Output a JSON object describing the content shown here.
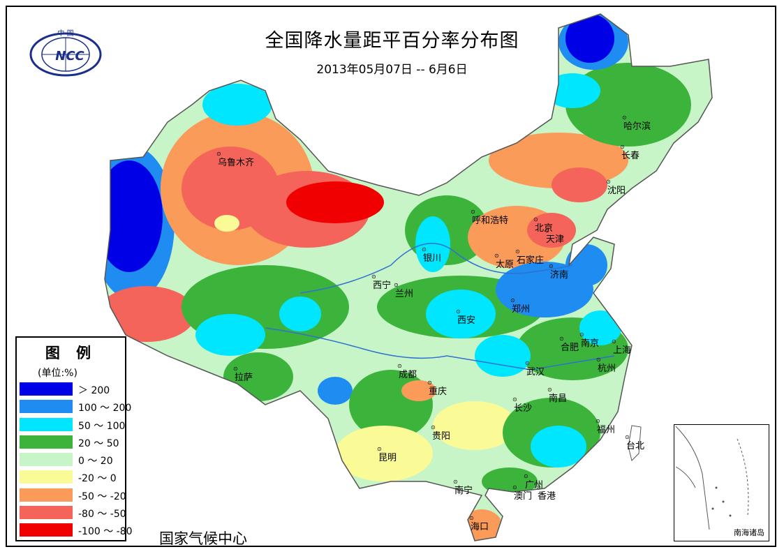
{
  "title": "全国降水量距平百分率分布图",
  "subtitle": "2013年05月07日 -- 6月6日",
  "agency": "国家气候中心",
  "logo": {
    "top_text": "中 国",
    "center_text": "NCC"
  },
  "legend": {
    "title": "图 例",
    "unit": "(单位:%)",
    "items": [
      {
        "label": "＞ 200",
        "color": "#0000e6"
      },
      {
        "label": "100 ～ 200",
        "color": "#1e8cf0"
      },
      {
        "label": "50 ～ 100",
        "color": "#00e6ff"
      },
      {
        "label": "20 ～ 50",
        "color": "#3cb43c"
      },
      {
        "label": "0 ～ 20",
        "color": "#c8f5c8"
      },
      {
        "label": "-20 ～ 0",
        "color": "#fafa96"
      },
      {
        "label": "-50 ～ -20",
        "color": "#fa9b5a"
      },
      {
        "label": "-80 ～ -50",
        "color": "#f5645a"
      },
      {
        "label": "-100 ～ -80",
        "color": "#f00000"
      }
    ]
  },
  "inset_label": "南海诸岛",
  "cities": [
    {
      "name": "乌鲁木齐"
    },
    {
      "name": "哈尔滨"
    },
    {
      "name": "长春"
    },
    {
      "name": "沈阳"
    },
    {
      "name": "呼和浩特"
    },
    {
      "name": "北京"
    },
    {
      "name": "天津"
    },
    {
      "name": "银川"
    },
    {
      "name": "石家庄"
    },
    {
      "name": "太原"
    },
    {
      "name": "济南"
    },
    {
      "name": "西宁"
    },
    {
      "name": "兰州"
    },
    {
      "name": "郑州"
    },
    {
      "name": "西安"
    },
    {
      "name": "合肥"
    },
    {
      "name": "南京"
    },
    {
      "name": "上海"
    },
    {
      "name": "拉萨"
    },
    {
      "name": "武汉"
    },
    {
      "name": "杭州"
    },
    {
      "name": "成都"
    },
    {
      "name": "重庆"
    },
    {
      "name": "南昌"
    },
    {
      "name": "长沙"
    },
    {
      "name": "福州"
    },
    {
      "name": "贵阳"
    },
    {
      "name": "台北"
    },
    {
      "name": "昆明"
    },
    {
      "name": "南宁"
    },
    {
      "name": "广州"
    },
    {
      "name": "澳门"
    },
    {
      "name": "香港"
    },
    {
      "name": "海口"
    }
  ]
}
